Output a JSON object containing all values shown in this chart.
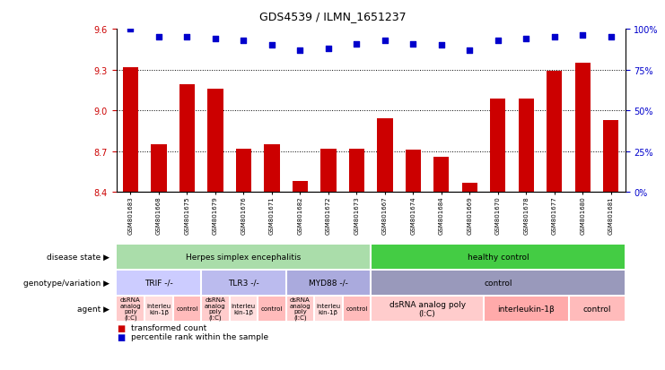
{
  "title": "GDS4539 / ILMN_1651237",
  "samples": [
    "GSM801683",
    "GSM801668",
    "GSM801675",
    "GSM801679",
    "GSM801676",
    "GSM801671",
    "GSM801682",
    "GSM801672",
    "GSM801673",
    "GSM801667",
    "GSM801674",
    "GSM801684",
    "GSM801669",
    "GSM801670",
    "GSM801678",
    "GSM801677",
    "GSM801680",
    "GSM801681"
  ],
  "bar_values": [
    9.32,
    8.75,
    9.19,
    9.16,
    8.72,
    8.75,
    8.48,
    8.72,
    8.72,
    8.94,
    8.71,
    8.66,
    8.47,
    9.09,
    9.09,
    9.29,
    9.35,
    8.93
  ],
  "dot_values": [
    100,
    95,
    95,
    94,
    93,
    90,
    87,
    88,
    91,
    93,
    91,
    90,
    87,
    93,
    94,
    95,
    96,
    95
  ],
  "ylim_left": [
    8.4,
    9.6
  ],
  "ylim_right": [
    0,
    100
  ],
  "yticks_left": [
    8.4,
    8.7,
    9.0,
    9.3,
    9.6
  ],
  "yticks_right": [
    0,
    25,
    50,
    75,
    100
  ],
  "hlines": [
    8.7,
    9.0,
    9.3
  ],
  "bar_color": "#cc0000",
  "dot_color": "#0000cc",
  "background_color": "#ffffff",
  "disease_state_row": {
    "groups": [
      {
        "label": "Herpes simplex encephalitis",
        "start": 0,
        "end": 9,
        "color": "#aaddaa"
      },
      {
        "label": "healthy control",
        "start": 9,
        "end": 18,
        "color": "#44cc44"
      }
    ]
  },
  "genotype_row": {
    "groups": [
      {
        "label": "TRIF -/-",
        "start": 0,
        "end": 3,
        "color": "#ccccff"
      },
      {
        "label": "TLR3 -/-",
        "start": 3,
        "end": 6,
        "color": "#bbbbee"
      },
      {
        "label": "MYD88 -/-",
        "start": 6,
        "end": 9,
        "color": "#aaaadd"
      },
      {
        "label": "control",
        "start": 9,
        "end": 18,
        "color": "#9999bb"
      }
    ]
  },
  "agent_row": {
    "groups": [
      {
        "label": "dsRNA\nanalog\npoly\n(I:C)",
        "start": 0,
        "end": 1,
        "color": "#ffcccc"
      },
      {
        "label": "interleu\nkin-1β",
        "start": 1,
        "end": 2,
        "color": "#ffdddd"
      },
      {
        "label": "control",
        "start": 2,
        "end": 3,
        "color": "#ffbbbb"
      },
      {
        "label": "dsRNA\nanalog\npoly\n(I:C)",
        "start": 3,
        "end": 4,
        "color": "#ffcccc"
      },
      {
        "label": "interleu\nkin-1β",
        "start": 4,
        "end": 5,
        "color": "#ffdddd"
      },
      {
        "label": "control",
        "start": 5,
        "end": 6,
        "color": "#ffbbbb"
      },
      {
        "label": "dsRNA\nanalog\npoly\n(I:C)",
        "start": 6,
        "end": 7,
        "color": "#ffcccc"
      },
      {
        "label": "interleu\nkin-1β",
        "start": 7,
        "end": 8,
        "color": "#ffdddd"
      },
      {
        "label": "control",
        "start": 8,
        "end": 9,
        "color": "#ffbbbb"
      },
      {
        "label": "dsRNA analog poly\n(I:C)",
        "start": 9,
        "end": 13,
        "color": "#ffcccc"
      },
      {
        "label": "interleukin-1β",
        "start": 13,
        "end": 16,
        "color": "#ffaaaa"
      },
      {
        "label": "control",
        "start": 16,
        "end": 18,
        "color": "#ffbbbb"
      }
    ]
  },
  "row_labels": [
    "disease state",
    "genotype/variation",
    "agent"
  ],
  "legend_red_label": "transformed count",
  "legend_blue_label": "percentile rank within the sample"
}
